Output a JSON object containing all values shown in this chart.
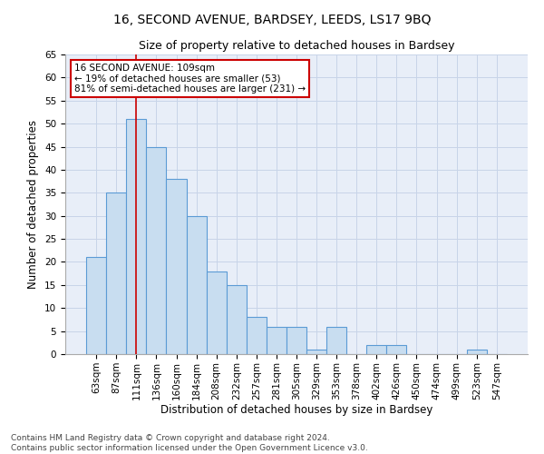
{
  "title": "16, SECOND AVENUE, BARDSEY, LEEDS, LS17 9BQ",
  "subtitle": "Size of property relative to detached houses in Bardsey",
  "xlabel": "Distribution of detached houses by size in Bardsey",
  "ylabel": "Number of detached properties",
  "categories": [
    "63sqm",
    "87sqm",
    "111sqm",
    "136sqm",
    "160sqm",
    "184sqm",
    "208sqm",
    "232sqm",
    "257sqm",
    "281sqm",
    "305sqm",
    "329sqm",
    "353sqm",
    "378sqm",
    "402sqm",
    "426sqm",
    "450sqm",
    "474sqm",
    "499sqm",
    "523sqm",
    "547sqm"
  ],
  "values": [
    21,
    35,
    51,
    45,
    38,
    30,
    18,
    15,
    8,
    6,
    6,
    1,
    6,
    0,
    2,
    2,
    0,
    0,
    0,
    1,
    0
  ],
  "bar_color": "#c8ddf0",
  "bar_edge_color": "#5b9bd5",
  "bar_edge_width": 0.8,
  "highlight_index": 2,
  "highlight_line_color": "#cc0000",
  "ylim": [
    0,
    65
  ],
  "yticks": [
    0,
    5,
    10,
    15,
    20,
    25,
    30,
    35,
    40,
    45,
    50,
    55,
    60,
    65
  ],
  "grid_color": "#c8d4e8",
  "background_color": "#e8eef8",
  "annotation_line1": "16 SECOND AVENUE: 109sqm",
  "annotation_line2": "← 19% of detached houses are smaller (53)",
  "annotation_line3": "81% of semi-detached houses are larger (231) →",
  "annotation_box_color": "#ffffff",
  "annotation_border_color": "#cc0000",
  "footer_line1": "Contains HM Land Registry data © Crown copyright and database right 2024.",
  "footer_line2": "Contains public sector information licensed under the Open Government Licence v3.0.",
  "title_fontsize": 10,
  "subtitle_fontsize": 9,
  "axis_label_fontsize": 8.5,
  "tick_fontsize": 7.5,
  "annotation_fontsize": 7.5,
  "footer_fontsize": 6.5
}
